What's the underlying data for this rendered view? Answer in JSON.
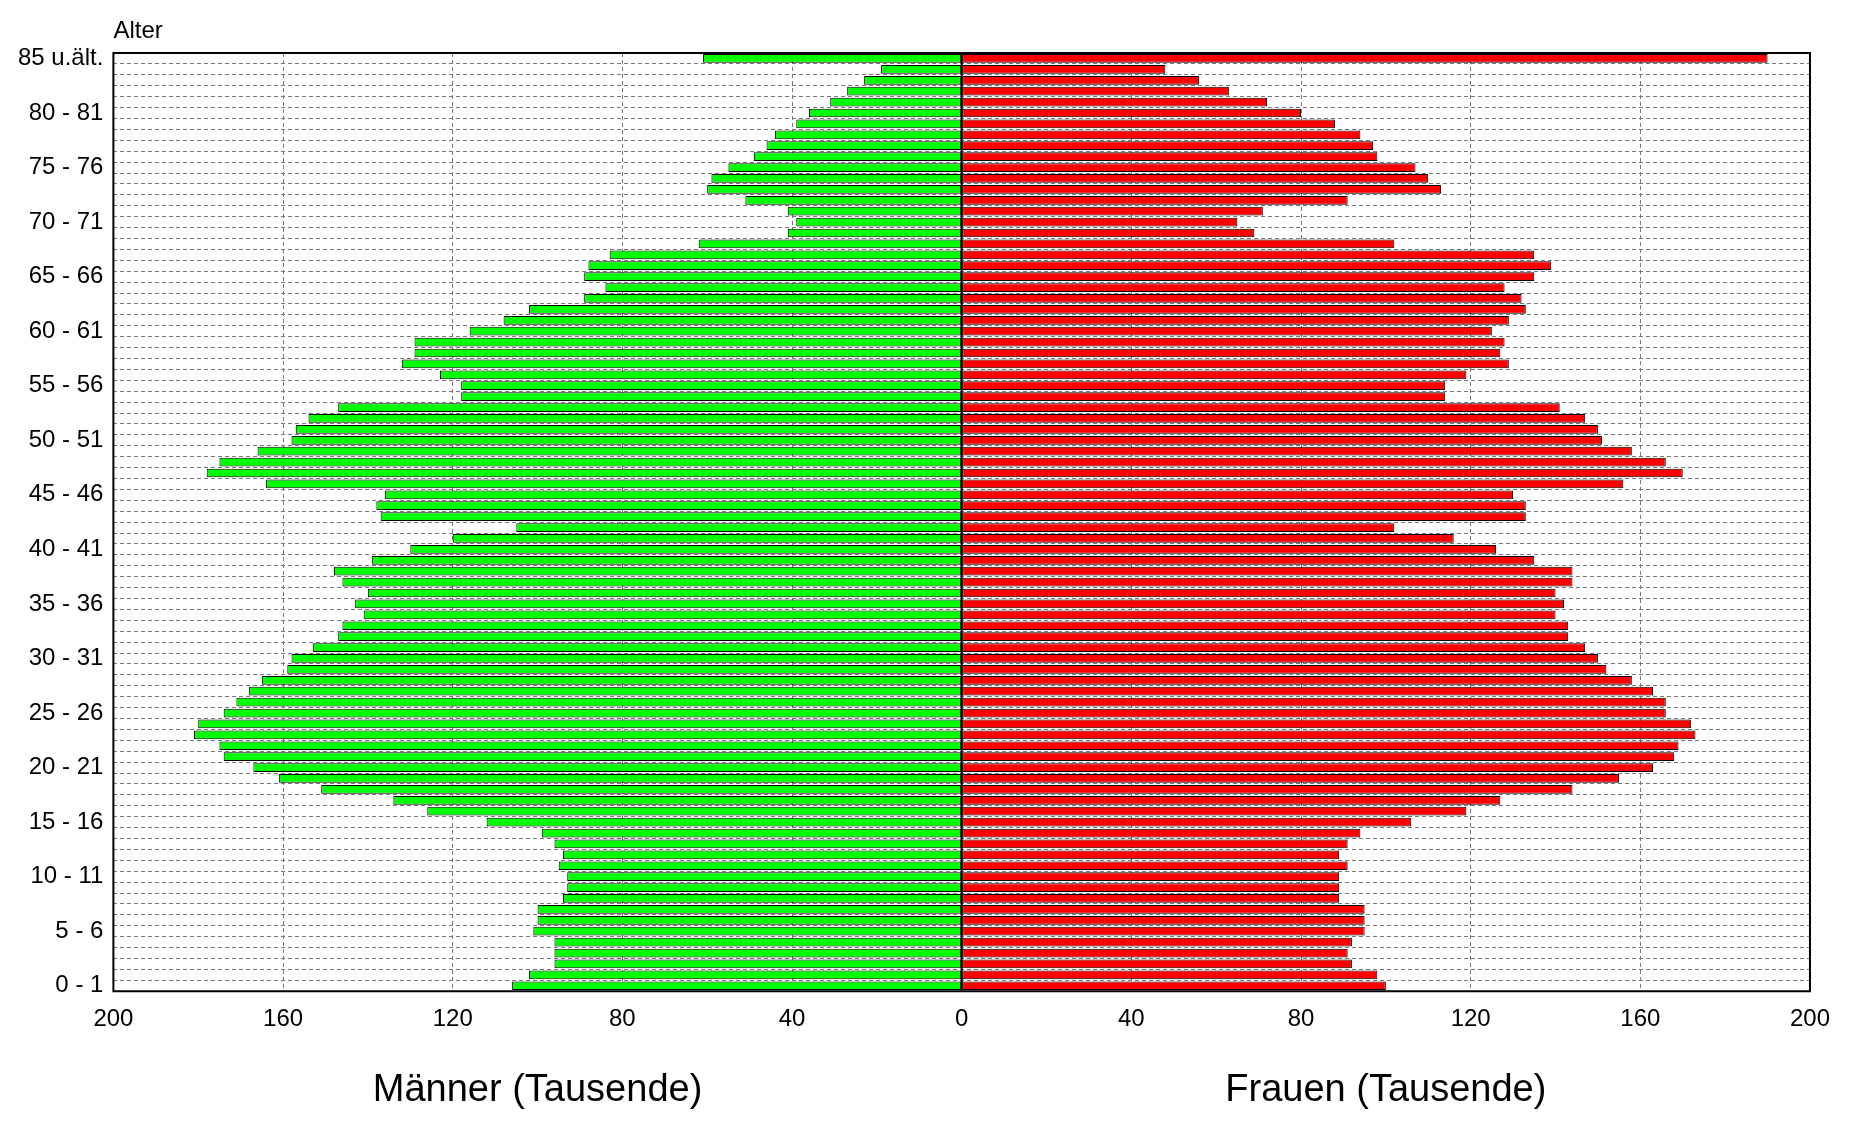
{
  "chart_data": {
    "type": "bar",
    "orientation": "horizontal",
    "stacked": true,
    "ylabel": "Alter",
    "grid": true,
    "legend": false,
    "categories": [
      "85 u.ält.",
      null,
      null,
      null,
      null,
      "80 - 81",
      null,
      null,
      null,
      null,
      "75 - 76",
      null,
      null,
      null,
      null,
      "70 - 71",
      null,
      null,
      null,
      null,
      "65 - 66",
      null,
      null,
      null,
      null,
      "60 - 61",
      null,
      null,
      null,
      null,
      "55 - 56",
      null,
      null,
      null,
      null,
      "50 - 51",
      null,
      null,
      null,
      null,
      "45 - 46",
      null,
      null,
      null,
      null,
      "40 - 41",
      null,
      null,
      null,
      null,
      "35 - 36",
      null,
      null,
      null,
      null,
      "30 - 31",
      null,
      null,
      null,
      null,
      "25 - 26",
      null,
      null,
      null,
      null,
      "20 - 21",
      null,
      null,
      null,
      null,
      "15 - 16",
      null,
      null,
      null,
      null,
      "10 - 11",
      null,
      null,
      null,
      null,
      "5 - 6",
      null,
      null,
      null,
      null,
      "0 - 1"
    ],
    "xlim": [
      -200,
      200
    ],
    "ref_lines": [
      {
        "axis": "x",
        "value": 0,
        "color": "#000000"
      }
    ],
    "xticks": [
      {
        "value": -200,
        "label": "200"
      },
      {
        "value": -160,
        "label": "160"
      },
      {
        "value": -120,
        "label": "120"
      },
      {
        "value": -80,
        "label": "80"
      },
      {
        "value": -40,
        "label": "40"
      },
      0,
      40,
      80,
      120,
      160,
      200
    ],
    "series": [
      {
        "name": "Männer (Tausende)",
        "color": "#00ff00",
        "values": [
          -61,
          -19,
          -23,
          -27,
          -31,
          -36,
          -39,
          -44,
          -46,
          -49,
          -55,
          -59,
          -60,
          -51,
          -41,
          -39,
          -41,
          -62,
          -83,
          -88,
          -89,
          -84,
          -89,
          -102,
          -108,
          -116,
          -129,
          -129,
          -132,
          -123,
          -118,
          -118,
          -147,
          -154,
          -157,
          -158,
          -166,
          -175,
          -178,
          -164,
          -136,
          -138,
          -137,
          -105,
          -120,
          -130,
          -139,
          -148,
          -146,
          -140,
          -143,
          -141,
          -146,
          -147,
          -153,
          -158,
          -159,
          -165,
          -168,
          -171,
          -174,
          -180,
          -181,
          -175,
          -174,
          -167,
          -161,
          -151,
          -134,
          -126,
          -112,
          -99,
          -96,
          -94,
          -95,
          -93,
          -93,
          -94,
          -100,
          -100,
          -101,
          -96,
          -96,
          -96,
          -102,
          -106
        ]
      },
      {
        "name": "Frauen (Tausende)",
        "color": "#ff0000",
        "values": [
          190,
          48,
          56,
          63,
          72,
          80,
          88,
          94,
          97,
          98,
          107,
          110,
          113,
          91,
          71,
          65,
          69,
          102,
          135,
          139,
          135,
          128,
          132,
          133,
          129,
          125,
          128,
          127,
          129,
          119,
          114,
          114,
          141,
          147,
          150,
          151,
          158,
          166,
          170,
          156,
          130,
          133,
          133,
          102,
          116,
          126,
          135,
          144,
          144,
          140,
          142,
          140,
          143,
          143,
          147,
          150,
          152,
          158,
          163,
          166,
          166,
          172,
          173,
          169,
          168,
          163,
          155,
          144,
          127,
          119,
          106,
          94,
          91,
          89,
          91,
          89,
          89,
          89,
          95,
          95,
          95,
          92,
          91,
          92,
          98,
          100
        ]
      }
    ]
  }
}
